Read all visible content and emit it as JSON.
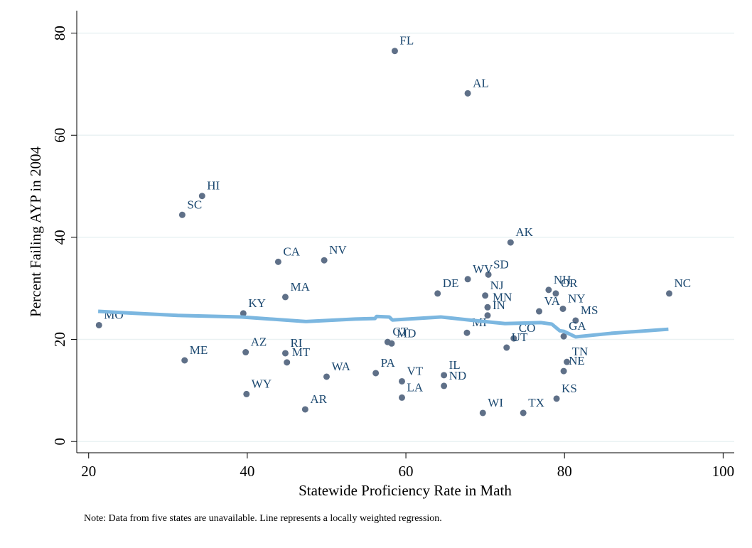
{
  "chart_data": {
    "type": "scatter",
    "y_label": "Percent Failing AYP in 2004",
    "x_label": "Statewide Proficiency Rate in Math",
    "note": "Note: Data from five states are unavailable. Line represents a locally weighted regression.",
    "xlim": [
      18.5,
      101.4
    ],
    "ylim": [
      -2.2,
      84.4
    ],
    "xticks": [
      20,
      40,
      60,
      80,
      100
    ],
    "yticks": [
      0,
      20,
      40,
      60,
      80
    ],
    "grid": true,
    "series": [
      {
        "type": "scatter",
        "color": "#5f7088",
        "labels": [
          "FL",
          "AL",
          "HI",
          "SC",
          "CA",
          "NV",
          "AK",
          "SD",
          "WV",
          "DE",
          "NJ",
          "MN",
          "IN",
          "NH",
          "OR",
          "NY",
          "NC",
          "VA",
          "MS",
          "GA",
          "CO",
          "UT",
          "MI",
          "CT",
          "MD",
          "MO",
          "KY",
          "MA",
          "ME",
          "AZ",
          "RI",
          "MT",
          "WA",
          "PA",
          "VT",
          "IL",
          "ND",
          "LA",
          "WY",
          "AR",
          "WI",
          "TX",
          "KS",
          "TN",
          "NE"
        ],
        "x": [
          58.6,
          67.8,
          34.3,
          31.8,
          43.9,
          49.7,
          73.2,
          70.4,
          67.8,
          64.0,
          70.0,
          70.3,
          70.3,
          78.0,
          78.9,
          79.8,
          93.2,
          76.8,
          81.4,
          79.9,
          73.6,
          72.7,
          67.7,
          57.7,
          58.2,
          21.3,
          39.5,
          44.8,
          32.1,
          39.8,
          44.8,
          45.0,
          50.0,
          56.2,
          59.5,
          64.8,
          64.8,
          59.5,
          39.9,
          47.3,
          69.7,
          74.8,
          79.0,
          80.3,
          79.9
        ],
        "values": [
          76.5,
          68.2,
          48.1,
          44.4,
          35.2,
          35.5,
          39.0,
          32.7,
          31.8,
          29.0,
          28.6,
          26.3,
          24.7,
          29.7,
          29.0,
          26.0,
          29.0,
          25.5,
          23.7,
          20.6,
          20.2,
          18.4,
          21.3,
          19.5,
          19.2,
          22.8,
          25.1,
          28.3,
          15.9,
          17.5,
          17.3,
          15.5,
          12.7,
          13.4,
          11.8,
          13.0,
          10.9,
          8.6,
          9.3,
          6.3,
          5.6,
          5.6,
          8.4,
          15.6,
          13.8
        ]
      },
      {
        "type": "line",
        "color": "#7cb7e0",
        "x": [
          21.2,
          24.9,
          31.2,
          39.3,
          47.4,
          53.6,
          56.1,
          56.3,
          57.9,
          58.3,
          64.4,
          68.0,
          72.5,
          77.0,
          78.4,
          79.4,
          79.9,
          81.4,
          85.9,
          93.1
        ],
        "values": [
          25.5,
          25.2,
          24.7,
          24.4,
          23.5,
          24.0,
          24.1,
          24.5,
          24.4,
          23.8,
          24.4,
          23.8,
          23.1,
          23.3,
          23.0,
          21.7,
          21.6,
          20.5,
          21.2,
          22.0
        ]
      }
    ]
  }
}
